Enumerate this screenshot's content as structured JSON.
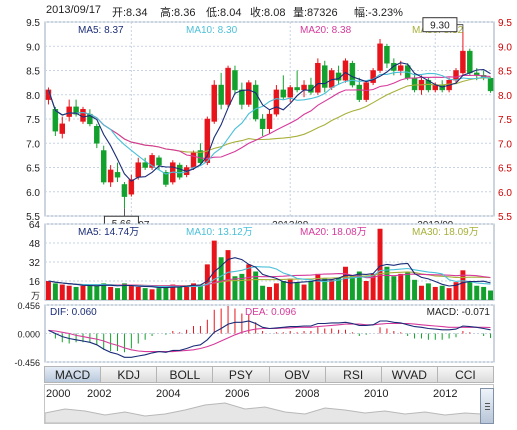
{
  "header": {
    "date": "2013/09/17",
    "open": "开:8.34",
    "high": "高:8.36",
    "low": "低:8.04",
    "close": "收:8.08",
    "volume": "量:87326",
    "change": "幅:-3.23%"
  },
  "colors": {
    "up": "#e8141c",
    "down": "#12a12c",
    "ma5": "#1a2c78",
    "ma10": "#4bc0d9",
    "ma20": "#d63a9b",
    "ma30": "#a8b03a",
    "axis_right": "#d00000",
    "grid": "#c7d3e3"
  },
  "chart_data": [
    {
      "type": "candlestick",
      "ylim": [
        5.5,
        9.5
      ],
      "y_ticks": [
        "9.5",
        "9.0",
        "8.5",
        "8.0",
        "7.5",
        "7.0",
        "6.5",
        "6.0",
        "5.5"
      ],
      "x_ticks": [
        "2013/07",
        "2013/08",
        "2013/09"
      ],
      "ma_labels": {
        "ma5": "MA5: 8.37",
        "ma10": "MA10: 8.30",
        "ma20": "MA20: 8.38",
        "ma30": "MA30: 8.32"
      },
      "annotations": [
        {
          "text": "9.30",
          "kind": "high"
        },
        {
          "text": "5.66",
          "kind": "low"
        }
      ],
      "candles": [
        {
          "o": 7.9,
          "h": 8.15,
          "l": 7.8,
          "c": 8.1
        },
        {
          "o": 7.7,
          "h": 7.75,
          "l": 7.15,
          "c": 7.25
        },
        {
          "o": 7.2,
          "h": 7.55,
          "l": 7.1,
          "c": 7.4
        },
        {
          "o": 7.55,
          "h": 7.9,
          "l": 7.45,
          "c": 7.75
        },
        {
          "o": 7.75,
          "h": 7.9,
          "l": 7.55,
          "c": 7.6
        },
        {
          "o": 7.45,
          "h": 7.75,
          "l": 7.4,
          "c": 7.7
        },
        {
          "o": 7.6,
          "h": 7.7,
          "l": 7.35,
          "c": 7.4
        },
        {
          "o": 7.35,
          "h": 7.4,
          "l": 6.9,
          "c": 7.0
        },
        {
          "o": 6.85,
          "h": 6.95,
          "l": 6.15,
          "c": 6.2
        },
        {
          "o": 6.2,
          "h": 6.55,
          "l": 6.1,
          "c": 6.45
        },
        {
          "o": 6.4,
          "h": 6.6,
          "l": 6.2,
          "c": 6.3
        },
        {
          "o": 6.15,
          "h": 6.2,
          "l": 5.66,
          "c": 5.9
        },
        {
          "o": 5.95,
          "h": 6.35,
          "l": 5.9,
          "c": 6.25
        },
        {
          "o": 6.3,
          "h": 6.7,
          "l": 6.25,
          "c": 6.6
        },
        {
          "o": 6.6,
          "h": 6.7,
          "l": 6.45,
          "c": 6.5
        },
        {
          "o": 6.5,
          "h": 6.8,
          "l": 6.45,
          "c": 6.75
        },
        {
          "o": 6.7,
          "h": 6.75,
          "l": 6.45,
          "c": 6.55
        },
        {
          "o": 6.4,
          "h": 6.45,
          "l": 6.1,
          "c": 6.15
        },
        {
          "o": 6.2,
          "h": 6.65,
          "l": 6.15,
          "c": 6.6
        },
        {
          "o": 6.55,
          "h": 6.6,
          "l": 6.25,
          "c": 6.3
        },
        {
          "o": 6.35,
          "h": 6.55,
          "l": 6.3,
          "c": 6.5
        },
        {
          "o": 6.5,
          "h": 6.85,
          "l": 6.45,
          "c": 6.8
        },
        {
          "o": 6.85,
          "h": 7.0,
          "l": 6.55,
          "c": 6.6
        },
        {
          "o": 6.6,
          "h": 7.55,
          "l": 6.55,
          "c": 7.5
        },
        {
          "o": 7.45,
          "h": 8.3,
          "l": 7.4,
          "c": 8.2
        },
        {
          "o": 8.2,
          "h": 8.45,
          "l": 7.7,
          "c": 7.8
        },
        {
          "o": 7.8,
          "h": 8.6,
          "l": 7.75,
          "c": 8.55
        },
        {
          "o": 8.5,
          "h": 8.6,
          "l": 8.0,
          "c": 8.1
        },
        {
          "o": 8.1,
          "h": 8.25,
          "l": 7.7,
          "c": 7.8
        },
        {
          "o": 7.8,
          "h": 8.3,
          "l": 7.75,
          "c": 8.25
        },
        {
          "o": 8.2,
          "h": 8.3,
          "l": 7.45,
          "c": 7.5
        },
        {
          "o": 7.5,
          "h": 7.6,
          "l": 7.15,
          "c": 7.3
        },
        {
          "o": 7.3,
          "h": 7.7,
          "l": 7.2,
          "c": 7.6
        },
        {
          "o": 7.6,
          "h": 8.2,
          "l": 7.55,
          "c": 8.1
        },
        {
          "o": 8.1,
          "h": 8.4,
          "l": 7.9,
          "c": 7.95
        },
        {
          "o": 7.95,
          "h": 8.2,
          "l": 7.85,
          "c": 8.15
        },
        {
          "o": 8.15,
          "h": 8.5,
          "l": 8.05,
          "c": 8.1
        },
        {
          "o": 8.1,
          "h": 8.3,
          "l": 7.95,
          "c": 8.2
        },
        {
          "o": 8.2,
          "h": 8.35,
          "l": 8.0,
          "c": 8.05
        },
        {
          "o": 8.05,
          "h": 8.75,
          "l": 8.0,
          "c": 8.65
        },
        {
          "o": 8.6,
          "h": 8.7,
          "l": 8.05,
          "c": 8.15
        },
        {
          "o": 8.15,
          "h": 8.55,
          "l": 8.1,
          "c": 8.5
        },
        {
          "o": 8.45,
          "h": 8.6,
          "l": 8.2,
          "c": 8.3
        },
        {
          "o": 8.3,
          "h": 8.75,
          "l": 8.25,
          "c": 8.7
        },
        {
          "o": 8.65,
          "h": 8.7,
          "l": 8.15,
          "c": 8.2
        },
        {
          "o": 8.2,
          "h": 8.35,
          "l": 7.85,
          "c": 7.9
        },
        {
          "o": 7.9,
          "h": 8.3,
          "l": 7.85,
          "c": 8.25
        },
        {
          "o": 8.25,
          "h": 8.55,
          "l": 8.2,
          "c": 8.5
        },
        {
          "o": 8.5,
          "h": 9.15,
          "l": 8.45,
          "c": 9.05
        },
        {
          "o": 9.0,
          "h": 9.05,
          "l": 8.55,
          "c": 8.65
        },
        {
          "o": 8.65,
          "h": 8.75,
          "l": 8.4,
          "c": 8.5
        },
        {
          "o": 8.5,
          "h": 8.7,
          "l": 8.4,
          "c": 8.6
        },
        {
          "o": 8.6,
          "h": 8.65,
          "l": 8.3,
          "c": 8.35
        },
        {
          "o": 8.35,
          "h": 8.45,
          "l": 8.05,
          "c": 8.1
        },
        {
          "o": 8.1,
          "h": 8.4,
          "l": 8.0,
          "c": 8.3
        },
        {
          "o": 8.3,
          "h": 8.35,
          "l": 8.05,
          "c": 8.1
        },
        {
          "o": 8.1,
          "h": 8.25,
          "l": 8.05,
          "c": 8.2
        },
        {
          "o": 8.2,
          "h": 8.3,
          "l": 8.05,
          "c": 8.1
        },
        {
          "o": 8.1,
          "h": 8.35,
          "l": 8.05,
          "c": 8.3
        },
        {
          "o": 8.3,
          "h": 8.55,
          "l": 8.25,
          "c": 8.5
        },
        {
          "o": 8.45,
          "h": 9.3,
          "l": 8.4,
          "c": 8.9
        },
        {
          "o": 8.9,
          "h": 8.95,
          "l": 8.4,
          "c": 8.45
        },
        {
          "o": 8.45,
          "h": 8.55,
          "l": 8.3,
          "c": 8.4
        },
        {
          "o": 8.4,
          "h": 8.5,
          "l": 8.3,
          "c": 8.35
        },
        {
          "o": 8.34,
          "h": 8.36,
          "l": 8.04,
          "c": 8.08
        }
      ]
    },
    {
      "type": "bar",
      "ylim": [
        0,
        64
      ],
      "y_ticks": [
        "64",
        "48",
        "32",
        "16"
      ],
      "unit_label": "万",
      "ma_labels": {
        "ma5": "MA5: 14.74万",
        "ma10": "MA10: 13.12万",
        "ma20": "MA20: 18.08万",
        "ma30": "MA30: 18.09万"
      },
      "values": [
        16,
        14,
        13,
        12,
        11,
        12,
        13,
        12,
        14,
        11,
        10,
        14,
        12,
        11,
        10,
        9,
        10,
        12,
        13,
        11,
        12,
        14,
        13,
        30,
        50,
        36,
        42,
        20,
        22,
        30,
        24,
        12,
        11,
        14,
        16,
        18,
        15,
        13,
        16,
        22,
        18,
        17,
        19,
        28,
        21,
        24,
        16,
        22,
        60,
        28,
        20,
        22,
        24,
        17,
        12,
        14,
        11,
        12,
        10,
        15,
        25,
        16,
        12,
        11,
        8
      ]
    },
    {
      "type": "macd",
      "ylim": [
        -0.456,
        0.456
      ],
      "y_ticks": [
        "0.456",
        "0.000",
        "-0.456"
      ],
      "dif_label": "DIF: 0.060",
      "dea_label": "DEA: 0.096",
      "macd_label": "MACD: -0.071",
      "dif": [
        0.05,
        0.0,
        -0.05,
        -0.08,
        -0.1,
        -0.12,
        -0.14,
        -0.18,
        -0.25,
        -0.3,
        -0.33,
        -0.38,
        -0.38,
        -0.36,
        -0.34,
        -0.31,
        -0.29,
        -0.3,
        -0.27,
        -0.27,
        -0.24,
        -0.2,
        -0.18,
        -0.1,
        0.02,
        0.08,
        0.15,
        0.18,
        0.18,
        0.2,
        0.16,
        0.1,
        0.08,
        0.09,
        0.1,
        0.11,
        0.11,
        0.12,
        0.12,
        0.16,
        0.16,
        0.17,
        0.17,
        0.18,
        0.16,
        0.13,
        0.13,
        0.14,
        0.2,
        0.2,
        0.18,
        0.17,
        0.14,
        0.11,
        0.1,
        0.08,
        0.07,
        0.06,
        0.06,
        0.07,
        0.12,
        0.11,
        0.1,
        0.08,
        0.06
      ],
      "dea": [
        0.05,
        0.04,
        0.02,
        0.0,
        -0.03,
        -0.05,
        -0.07,
        -0.09,
        -0.12,
        -0.16,
        -0.19,
        -0.23,
        -0.26,
        -0.28,
        -0.29,
        -0.29,
        -0.29,
        -0.29,
        -0.29,
        -0.28,
        -0.27,
        -0.26,
        -0.24,
        -0.21,
        -0.17,
        -0.12,
        -0.07,
        -0.02,
        0.02,
        0.05,
        0.07,
        0.08,
        0.08,
        0.08,
        0.09,
        0.09,
        0.1,
        0.1,
        0.1,
        0.11,
        0.12,
        0.13,
        0.14,
        0.15,
        0.15,
        0.15,
        0.14,
        0.14,
        0.15,
        0.16,
        0.16,
        0.16,
        0.16,
        0.15,
        0.14,
        0.13,
        0.12,
        0.11,
        0.1,
        0.1,
        0.1,
        0.1,
        0.1,
        0.1,
        0.096
      ]
    }
  ],
  "tabs": [
    "MACD",
    "KDJ",
    "BOLL",
    "PSY",
    "OBV",
    "RSI",
    "WVAD",
    "CCI"
  ],
  "active_tab": "MACD",
  "timeline": {
    "years": [
      "2000",
      "2002",
      "2004",
      "2006",
      "2008",
      "2010",
      "2012"
    ]
  }
}
